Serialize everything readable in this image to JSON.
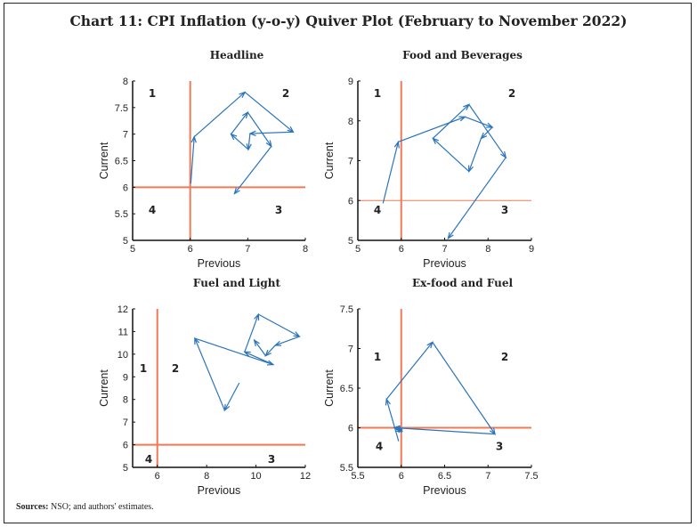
{
  "title": "Chart 11: CPI Inflation (y-o-y) Quiver Plot (February to November 2022)",
  "sources_label": "Sources:",
  "sources_text": " NSO; and authors' estimates.",
  "colors": {
    "arrow": "#2a74bb",
    "reference": "#f07a55",
    "axis": "#111111"
  },
  "chart_data": [
    {
      "type": "quiver",
      "title": "Headline",
      "xlabel": "Previous",
      "ylabel": "Current",
      "xlim": [
        5,
        8
      ],
      "ylim": [
        5,
        8
      ],
      "xticks": [
        "5",
        "6",
        "7",
        "8"
      ],
      "yticks": [
        "5",
        "5.5",
        "6",
        "6.5",
        "7",
        "7.5",
        "8"
      ],
      "reference": {
        "x": 6,
        "y": 6
      },
      "quadrants": [
        "1",
        "2",
        "3",
        "4"
      ],
      "points": [
        [
          6.01,
          6.07
        ],
        [
          6.07,
          6.95
        ],
        [
          6.95,
          7.79
        ],
        [
          7.79,
          7.04
        ],
        [
          7.04,
          7.01
        ],
        [
          7.01,
          6.71
        ],
        [
          6.71,
          7.0
        ],
        [
          7.0,
          7.41
        ],
        [
          7.41,
          6.77
        ],
        [
          6.77,
          5.88
        ]
      ]
    },
    {
      "type": "quiver",
      "title": "Food and Beverages",
      "xlabel": "Previous",
      "ylabel": "Current",
      "xlim": [
        5,
        9
      ],
      "ylim": [
        5,
        9
      ],
      "xticks": [
        "5",
        "6",
        "7",
        "8",
        "9"
      ],
      "yticks": [
        "5",
        "6",
        "7",
        "8",
        "9"
      ],
      "reference": {
        "x": 6,
        "y": 6
      },
      "quadrants": [
        "1",
        "2",
        "3",
        "4"
      ],
      "points": [
        [
          5.58,
          5.93
        ],
        [
          5.93,
          7.47
        ],
        [
          7.47,
          8.1
        ],
        [
          8.1,
          7.84
        ],
        [
          7.84,
          7.56
        ],
        [
          7.56,
          6.73
        ],
        [
          6.73,
          7.56
        ],
        [
          7.56,
          8.41
        ],
        [
          8.41,
          7.08
        ],
        [
          7.08,
          5.05
        ]
      ]
    },
    {
      "type": "quiver",
      "title": "Fuel and Light",
      "xlabel": "Previous",
      "ylabel": "Current",
      "xlim": [
        5,
        12
      ],
      "ylim": [
        5,
        12
      ],
      "xticks": [
        "6",
        "8",
        "10",
        "12"
      ],
      "xtick_values": [
        6,
        8,
        10,
        12
      ],
      "yticks": [
        "5",
        "6",
        "7",
        "8",
        "9",
        "10",
        "11",
        "12"
      ],
      "reference": {
        "x": 6,
        "y": 6
      },
      "quadrants": [
        "1",
        "2",
        "3",
        "4"
      ],
      "points": [
        [
          9.32,
          8.73
        ],
        [
          8.73,
          7.52
        ],
        [
          7.52,
          10.7
        ],
        [
          10.7,
          9.54
        ],
        [
          9.54,
          10.1
        ],
        [
          10.1,
          11.76
        ],
        [
          11.76,
          10.78
        ],
        [
          10.78,
          10.39
        ],
        [
          10.39,
          9.93
        ],
        [
          9.93,
          10.62
        ]
      ]
    },
    {
      "type": "quiver",
      "title": "Ex-food and Fuel",
      "xlabel": "Previous",
      "ylabel": "Current",
      "xlim": [
        5.5,
        7.5
      ],
      "ylim": [
        5.5,
        7.5
      ],
      "xticks": [
        "5.5",
        "6",
        "6.5",
        "7",
        "7.5"
      ],
      "yticks": [
        "5.5",
        "6",
        "6.5",
        "7",
        "7.5"
      ],
      "reference": {
        "x": 6,
        "y": 6
      },
      "quadrants": [
        "1",
        "2",
        "3",
        "4"
      ],
      "points": [
        [
          5.97,
          5.83
        ],
        [
          5.83,
          6.36
        ],
        [
          6.36,
          7.08
        ],
        [
          7.08,
          5.92
        ],
        [
          5.92,
          6.0
        ],
        [
          6.0,
          5.95
        ],
        [
          5.95,
          6.01
        ],
        [
          6.01,
          5.96
        ]
      ]
    }
  ]
}
